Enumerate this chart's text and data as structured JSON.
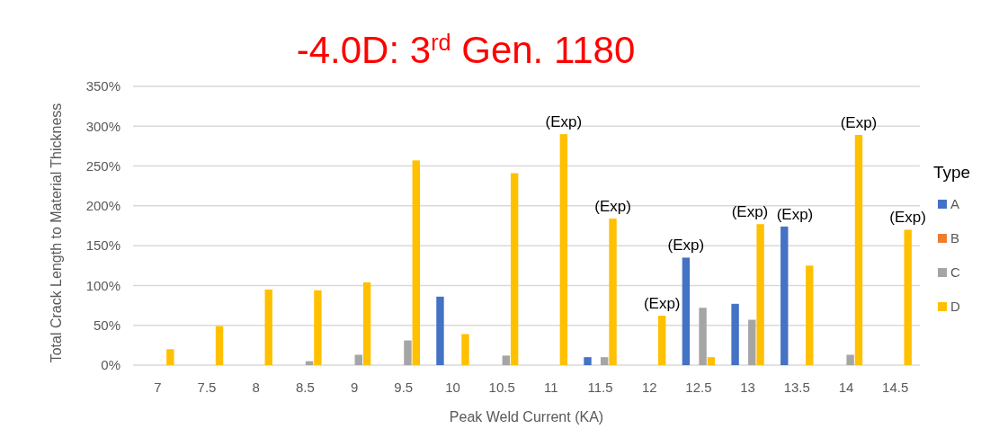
{
  "chart_data": {
    "type": "bar",
    "title": "-4.0D: 3$^{rd}$ Gen. 1180",
    "xlabel": "Peak Weld Current (KA)",
    "ylabel": "Total Crack Length to Material Thickness",
    "legend_title": "Type",
    "categories": [
      "7",
      "7.5",
      "8",
      "8.5",
      "9",
      "9.5",
      "10",
      "10.5",
      "11",
      "11.5",
      "12",
      "12.5",
      "13",
      "13.5",
      "14",
      "14.5"
    ],
    "series": [
      {
        "name": "A",
        "color": "#4472c4",
        "values": [
          null,
          null,
          null,
          null,
          null,
          null,
          86,
          null,
          null,
          10,
          null,
          135,
          77,
          174,
          null,
          null
        ],
        "value_labels": [
          null,
          null,
          null,
          null,
          null,
          null,
          null,
          null,
          null,
          null,
          null,
          "(Exp)",
          null,
          "(Exp)",
          null,
          null
        ]
      },
      {
        "name": "B",
        "color": "#ed7d31",
        "values": [
          null,
          null,
          null,
          null,
          null,
          null,
          null,
          null,
          null,
          null,
          null,
          null,
          null,
          null,
          null,
          null
        ]
      },
      {
        "name": "C",
        "color": "#a5a5a5",
        "values": [
          null,
          null,
          null,
          5,
          13,
          31,
          null,
          12,
          null,
          10,
          null,
          72,
          57,
          null,
          13,
          null
        ]
      },
      {
        "name": "D",
        "color": "#ffc000",
        "values": [
          20,
          49,
          95,
          94,
          104,
          257,
          39,
          241,
          290,
          184,
          62,
          10,
          177,
          125,
          289,
          170
        ],
        "value_labels": [
          null,
          null,
          null,
          null,
          null,
          null,
          null,
          null,
          "(Exp)",
          "(Exp)",
          "(Exp)",
          null,
          "(Exp)",
          null,
          "(Exp)",
          "(Exp)"
        ]
      }
    ],
    "ylim": [
      0,
      350
    ],
    "yticks": [
      {
        "value": 0,
        "label": "0%"
      },
      {
        "value": 50,
        "label": "50%"
      },
      {
        "value": 100,
        "label": "100%"
      },
      {
        "value": 150,
        "label": "150%"
      },
      {
        "value": 200,
        "label": "200%"
      },
      {
        "value": 250,
        "label": "250%"
      },
      {
        "value": 300,
        "label": "300%"
      },
      {
        "value": 350,
        "label": "350%"
      }
    ],
    "grid": "y",
    "legend": "right"
  }
}
